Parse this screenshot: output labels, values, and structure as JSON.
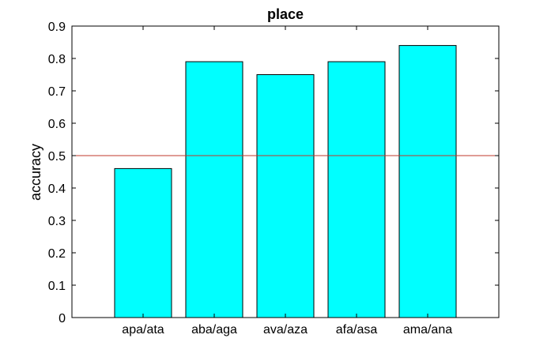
{
  "chart_data": {
    "type": "bar",
    "title": "place",
    "xlabel": "",
    "ylabel": "accuracy",
    "categories": [
      "apa/ata",
      "aba/aga",
      "ava/aza",
      "afa/asa",
      "ama/ana"
    ],
    "values": [
      0.46,
      0.79,
      0.75,
      0.79,
      0.84
    ],
    "ylim": [
      0,
      0.9
    ],
    "yticks": [
      "0",
      "0.1",
      "0.2",
      "0.3",
      "0.4",
      "0.5",
      "0.6",
      "0.7",
      "0.8",
      "0.9"
    ],
    "reference_line": {
      "y": 0.5,
      "color": "#c0392b"
    },
    "bar_color": "#00ffff",
    "bar_edge_color": "#000000",
    "grid": false,
    "legend": "none"
  }
}
